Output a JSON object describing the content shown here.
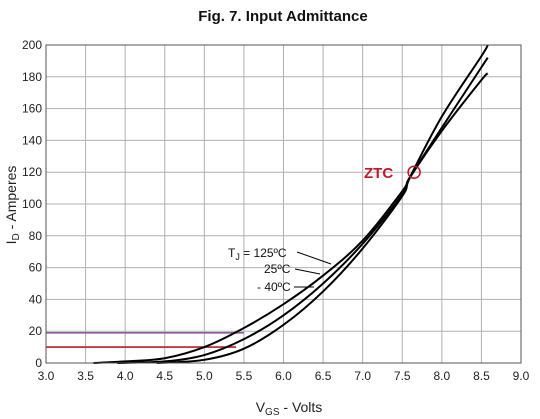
{
  "chart_data": {
    "type": "line",
    "title": "Fig. 7. Input Admittance",
    "xlabel": {
      "main": "V",
      "sub": "GS",
      "rest": " - Volts"
    },
    "ylabel": {
      "main": "I",
      "sub": "D",
      "rest": " - Amperes"
    },
    "xlim": [
      3.0,
      9.0
    ],
    "ylim": [
      0,
      200
    ],
    "xticks": [
      "3.0",
      "3.5",
      "4.0",
      "4.5",
      "5.0",
      "5.5",
      "6.0",
      "6.5",
      "7.0",
      "7.5",
      "8.0",
      "8.5",
      "9.0"
    ],
    "yticks": [
      "0",
      "20",
      "40",
      "60",
      "80",
      "100",
      "120",
      "140",
      "160",
      "180",
      "200"
    ],
    "grid": true,
    "series": [
      {
        "name": "T_J = 125ºC",
        "x": [
          3.6,
          4.0,
          4.5,
          5.0,
          5.5,
          6.0,
          6.5,
          7.0,
          7.5,
          7.6,
          8.0,
          8.5,
          8.58
        ],
        "y": [
          0,
          1,
          3,
          10,
          22,
          37,
          55,
          77,
          108,
          117,
          146,
          178,
          182
        ]
      },
      {
        "name": "25ºC",
        "x": [
          3.9,
          4.5,
          5.0,
          5.5,
          6.0,
          6.5,
          7.0,
          7.5,
          7.6,
          8.0,
          8.5,
          8.58
        ],
        "y": [
          0,
          1,
          5,
          15,
          30,
          50,
          75,
          106,
          117,
          148,
          186,
          192
        ]
      },
      {
        "name": "- 40ºC",
        "x": [
          4.4,
          5.0,
          5.5,
          6.0,
          6.5,
          7.0,
          7.5,
          7.6,
          8.0,
          8.5,
          8.58
        ],
        "y": [
          0,
          2,
          9,
          24,
          45,
          72,
          105,
          117,
          155,
          193,
          200
        ]
      }
    ],
    "annotations": {
      "tj_label": "T",
      "tj_sub": "J",
      "tj_rest": " = 125ºC",
      "mid_label": "25ºC",
      "low_label": "- 40ºC",
      "ztc_label": "ZTC",
      "ztc_point": {
        "x": 7.65,
        "y": 120
      },
      "hlines": [
        {
          "y": 19,
          "xmax": 5.5,
          "color": "#8a5a9a"
        },
        {
          "y": 10,
          "xmax": 5.4,
          "color": "#c0182a"
        }
      ]
    },
    "colors": {
      "curve": "#000000",
      "ztc": "#c0182a",
      "grid": "#b0b0b0"
    }
  }
}
